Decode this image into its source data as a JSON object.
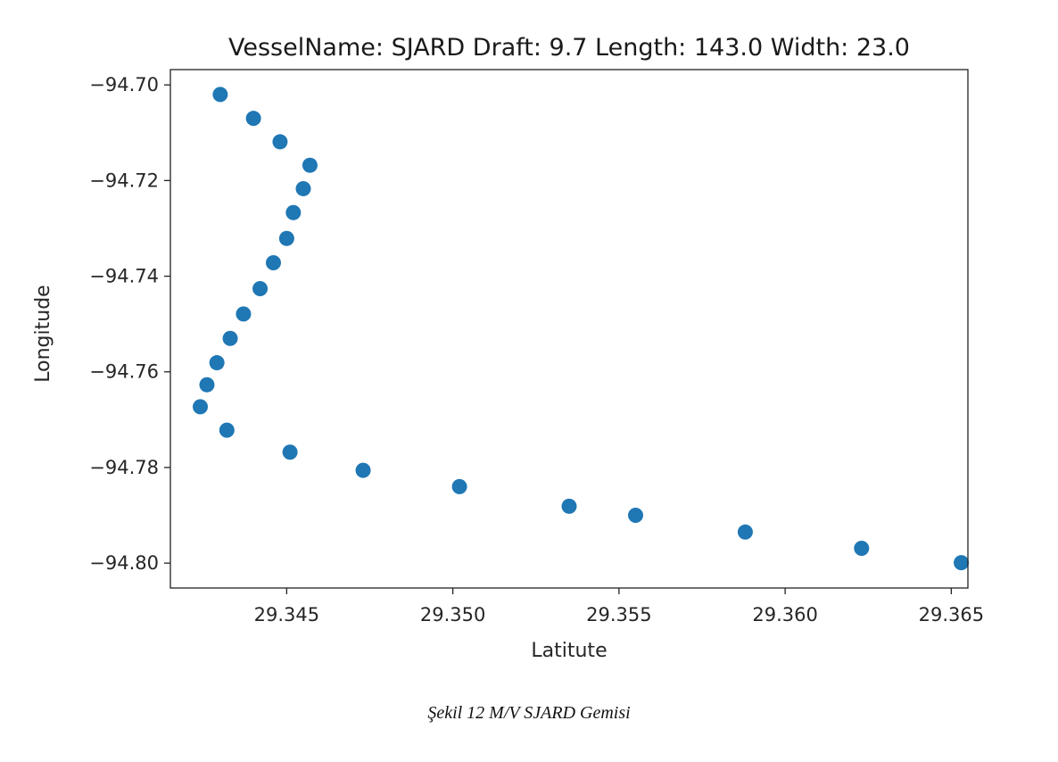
{
  "chart_data": {
    "type": "scatter",
    "title": "VesselName: SJARD Draft: 9.7 Length: 143.0 Width: 23.0",
    "xlabel": "Latitute",
    "ylabel": "Longitude",
    "xlim": [
      29.3415,
      29.3655
    ],
    "ylim": [
      -94.8052,
      -94.6968
    ],
    "xticks": [
      29.345,
      29.35,
      29.355,
      29.36,
      29.365
    ],
    "xtick_labels": [
      "29.345",
      "29.350",
      "29.355",
      "29.360",
      "29.365"
    ],
    "yticks": [
      -94.7,
      -94.72,
      -94.74,
      -94.76,
      -94.78,
      -94.8
    ],
    "ytick_labels": [
      "−94.70",
      "−94.72",
      "−94.74",
      "−94.76",
      "−94.78",
      "−94.80"
    ],
    "grid": false,
    "marker_color": "#1f77b4",
    "points": [
      {
        "x": 29.343,
        "y": -94.702
      },
      {
        "x": 29.344,
        "y": -94.707
      },
      {
        "x": 29.3448,
        "y": -94.7119
      },
      {
        "x": 29.3457,
        "y": -94.7168
      },
      {
        "x": 29.3455,
        "y": -94.7217
      },
      {
        "x": 29.3452,
        "y": -94.7267
      },
      {
        "x": 29.345,
        "y": -94.7321
      },
      {
        "x": 29.3446,
        "y": -94.7372
      },
      {
        "x": 29.3442,
        "y": -94.7426
      },
      {
        "x": 29.3437,
        "y": -94.7479
      },
      {
        "x": 29.3433,
        "y": -94.753
      },
      {
        "x": 29.3429,
        "y": -94.7581
      },
      {
        "x": 29.3426,
        "y": -94.7627
      },
      {
        "x": 29.3424,
        "y": -94.7673
      },
      {
        "x": 29.3432,
        "y": -94.7722
      },
      {
        "x": 29.3451,
        "y": -94.7768
      },
      {
        "x": 29.3473,
        "y": -94.7806
      },
      {
        "x": 29.3502,
        "y": -94.784
      },
      {
        "x": 29.3535,
        "y": -94.7881
      },
      {
        "x": 29.3555,
        "y": -94.79
      },
      {
        "x": 29.3588,
        "y": -94.7935
      },
      {
        "x": 29.3623,
        "y": -94.7969
      },
      {
        "x": 29.3653,
        "y": -94.7999
      }
    ]
  },
  "caption": "Şekil 12 M/V SJARD Gemisi"
}
